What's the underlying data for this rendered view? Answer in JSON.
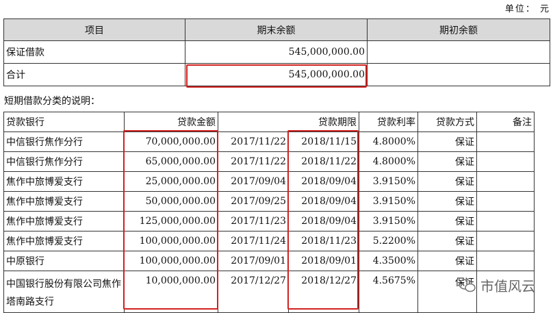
{
  "unit_label": "单位：  元",
  "summary": {
    "headers": [
      "项目",
      "期末余额",
      "期初余额"
    ],
    "rows": [
      {
        "item": "保证借款",
        "end": "545,000,000.00",
        "begin": ""
      },
      {
        "item": "合计",
        "end": "545,000,000.00",
        "begin": ""
      }
    ]
  },
  "note": "短期借款分类的说明：",
  "loans": {
    "headers": {
      "bank": "贷款银行",
      "amount": "贷款金额",
      "term": "贷款期限",
      "rate": "贷款利率",
      "method": "贷款方式",
      "remark": "备注"
    },
    "rows": [
      {
        "bank": "中信银行焦作分行",
        "amount": "70,000,000.00",
        "start": "2017/11/22",
        "end": "2018/11/15",
        "rate": "4.8000%",
        "method": "保证",
        "remark": ""
      },
      {
        "bank": "中信银行焦作分行",
        "amount": "65,000,000.00",
        "start": "2017/11/22",
        "end": "2018/11/22",
        "rate": "4.8000%",
        "method": "保证",
        "remark": ""
      },
      {
        "bank": "焦作中旅博爱支行",
        "amount": "25,000,000.00",
        "start": "2017/09/04",
        "end": "2018/09/04",
        "rate": "3.9150%",
        "method": "保证",
        "remark": ""
      },
      {
        "bank": "焦作中旅博爱支行",
        "amount": "50,000,000.00",
        "start": "2017/09/25",
        "end": "2018/09/04",
        "rate": "3.9150%",
        "method": "保证",
        "remark": ""
      },
      {
        "bank": "焦作中旅博爱支行",
        "amount": "125,000,000.00",
        "start": "2017/11/23",
        "end": "2018/09/04",
        "rate": "3.9150%",
        "method": "保证",
        "remark": ""
      },
      {
        "bank": "焦作中旅博爱支行",
        "amount": "100,000,000.00",
        "start": "2017/11/24",
        "end": "2018/11/23",
        "rate": "5.2200%",
        "method": "保证",
        "remark": ""
      },
      {
        "bank": "中原银行",
        "amount": "100,000,000.00",
        "start": "2017/09/01",
        "end": "2018/09/01",
        "rate": "4.3500%",
        "method": "保证",
        "remark": ""
      },
      {
        "bank": "中国银行股份有限公司焦作塔南路支行",
        "amount": "10,000,000.00",
        "start": "2017/12/27",
        "end": "2018/12/27",
        "rate": "4.5675%",
        "method": "保证",
        "remark": ""
      }
    ]
  },
  "watermark": {
    "text": "市值风云",
    "icon": "wechat-icon"
  },
  "colors": {
    "header_bg": "#d9d9d9",
    "highlight": "#d0201f"
  }
}
